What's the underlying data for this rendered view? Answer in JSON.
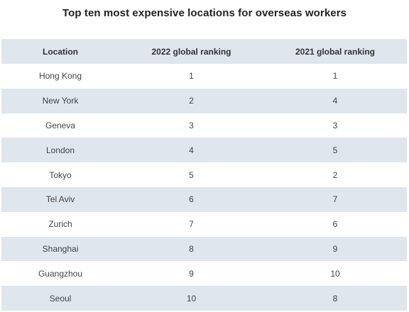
{
  "title": "Top ten most expensive locations for overseas workers",
  "table": {
    "headers": [
      "Location",
      "2022 global ranking",
      "2021 global ranking"
    ],
    "rows": [
      [
        "Hong Kong",
        "1",
        "1"
      ],
      [
        "New York",
        "2",
        "4"
      ],
      [
        "Geneva",
        "3",
        "3"
      ],
      [
        "London",
        "4",
        "5"
      ],
      [
        "Tokyo",
        "5",
        "2"
      ],
      [
        "Tel Aviv",
        "6",
        "7"
      ],
      [
        "Zurich",
        "7",
        "6"
      ],
      [
        "Shanghai",
        "8",
        "9"
      ],
      [
        "Guangzhou",
        "9",
        "10"
      ],
      [
        "Seoul",
        "10",
        "8"
      ]
    ]
  },
  "colors": {
    "stripe": "#dfe6ee",
    "background": "#ffffff"
  }
}
